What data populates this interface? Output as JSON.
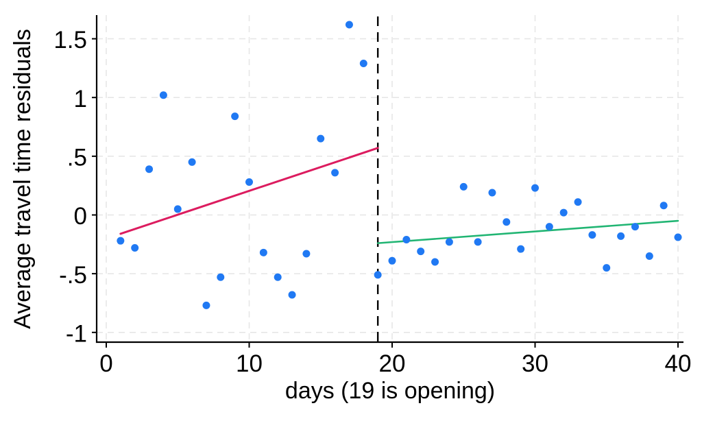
{
  "figure": {
    "background": "#ffffff"
  },
  "chart_data": {
    "type": "scatter",
    "title": "",
    "xlabel": "days (19 is opening)",
    "ylabel": "Average travel time residuals",
    "xlim": [
      0,
      40
    ],
    "ylim": [
      -1,
      1.5
    ],
    "grid": "both-dashed",
    "legend": "none",
    "x_ticks": [
      {
        "value": 0,
        "label": "0"
      },
      {
        "value": 10,
        "label": "10"
      },
      {
        "value": 20,
        "label": "20"
      },
      {
        "value": 30,
        "label": "30"
      },
      {
        "value": 40,
        "label": "40"
      }
    ],
    "y_ticks": [
      {
        "value": -1,
        "label": "-1"
      },
      {
        "value": -0.5,
        "label": "-.5"
      },
      {
        "value": 0,
        "label": "0"
      },
      {
        "value": 0.5,
        "label": ".5"
      },
      {
        "value": 1,
        "label": "1"
      },
      {
        "value": 1.5,
        "label": "1.5"
      }
    ],
    "cutoff_line": {
      "x": 19,
      "color": "#000000",
      "style": "dashed"
    },
    "colors": {
      "points": "#2079f3",
      "pre_fit": "#dc1c5f",
      "post_fit": "#21b573",
      "grid": "#e6e6e6",
      "axis": "#000000",
      "cutoff": "#000000"
    },
    "series": [
      {
        "name": "pre-opening-points",
        "type": "scatter",
        "color": "#2079f3",
        "x": [
          1,
          2,
          3,
          4,
          5,
          6,
          7,
          8,
          9,
          10,
          11,
          12,
          13,
          14,
          15,
          16,
          17,
          18
        ],
        "y": [
          -0.22,
          -0.28,
          0.39,
          1.02,
          0.05,
          0.45,
          -0.77,
          -0.53,
          0.84,
          0.28,
          -0.32,
          -0.53,
          -0.68,
          -0.33,
          0.65,
          0.36,
          1.62,
          1.29
        ]
      },
      {
        "name": "post-opening-points",
        "type": "scatter",
        "color": "#2079f3",
        "x": [
          19,
          20,
          21,
          22,
          23,
          24,
          25,
          26,
          27,
          28,
          29,
          30,
          31,
          32,
          33,
          34,
          35,
          36,
          37,
          38,
          39,
          40
        ],
        "y": [
          -0.51,
          -0.39,
          -0.21,
          -0.31,
          -0.4,
          -0.23,
          0.24,
          -0.23,
          0.19,
          -0.06,
          -0.29,
          0.23,
          -0.1,
          0.02,
          0.11,
          -0.17,
          -0.45,
          -0.18,
          -0.1,
          -0.35,
          0.08,
          -0.19
        ]
      },
      {
        "name": "pre-opening-fit-line",
        "type": "line",
        "color": "#dc1c5f",
        "width": 3,
        "x": [
          1,
          19
        ],
        "y": [
          -0.16,
          0.57
        ]
      },
      {
        "name": "post-opening-fit-line",
        "type": "line",
        "color": "#21b573",
        "width": 2.6,
        "x": [
          19,
          40
        ],
        "y": [
          -0.24,
          -0.05
        ]
      }
    ]
  }
}
